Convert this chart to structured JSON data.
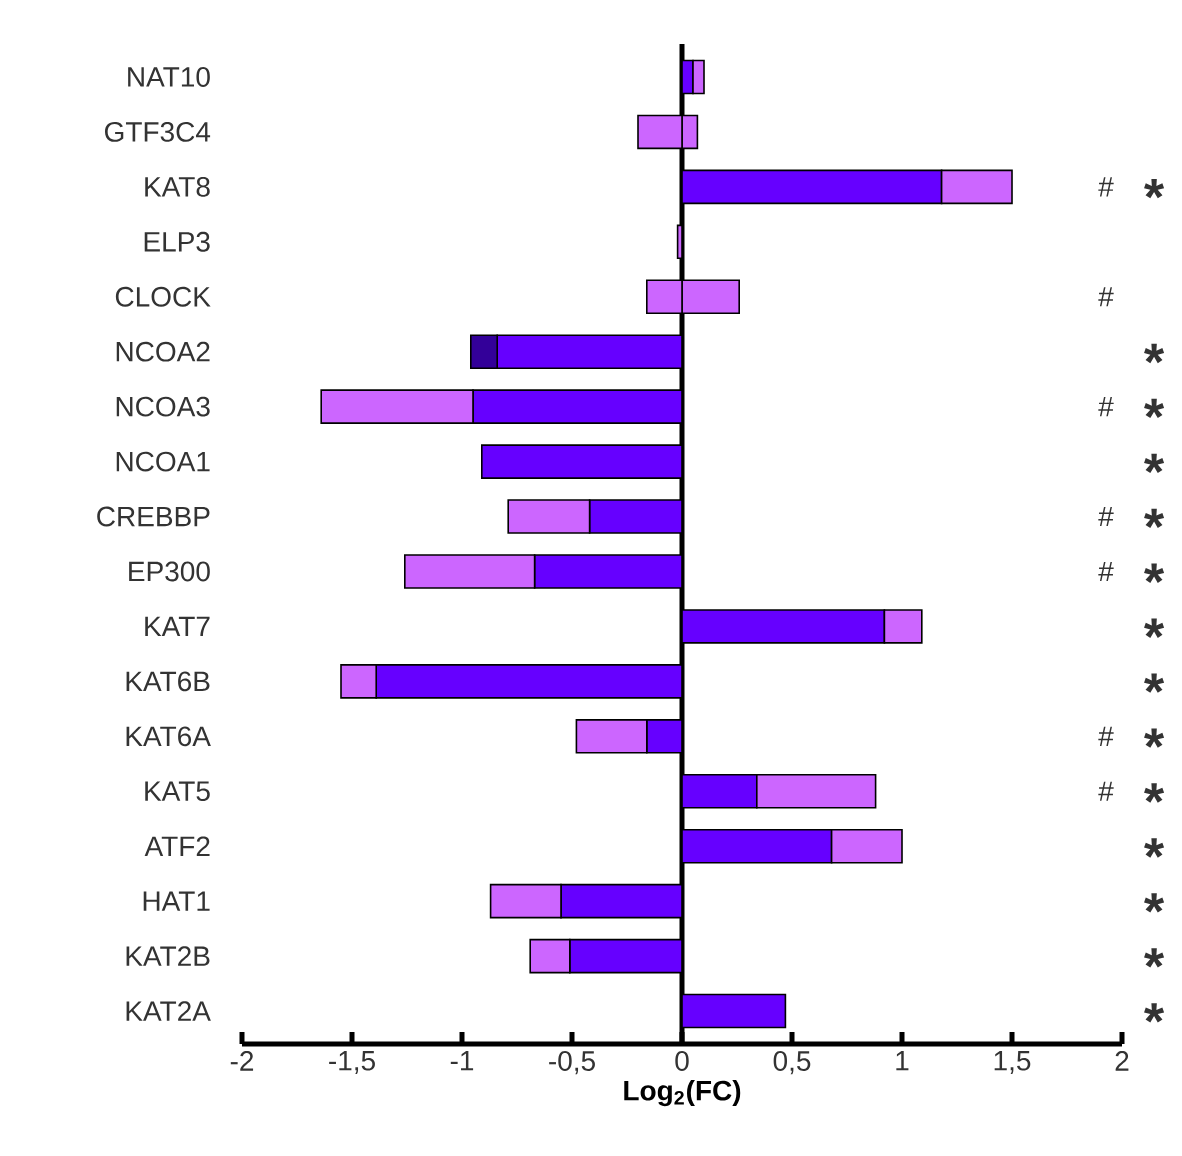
{
  "chart_data": {
    "type": "bar",
    "orientation": "horizontal",
    "stacked": true,
    "xlabel": "Log$_{2}$(FC)",
    "categories": [
      "NAT10",
      "GTF3C4",
      "KAT8",
      "ELP3",
      "CLOCK",
      "NCOA2",
      "NCOA3",
      "NCOA1",
      "CREBBP",
      "EP300",
      "KAT7",
      "KAT6B",
      "KAT6A",
      "KAT5",
      "ATF2",
      "HAT1",
      "KAT2B",
      "KAT2A"
    ],
    "series": [
      {
        "color": "#6600ff",
        "values": [
          0.05,
          null,
          1.18,
          null,
          null,
          -0.84,
          -0.95,
          -0.91,
          -0.42,
          -0.67,
          0.92,
          -1.39,
          -0.16,
          0.34,
          0.68,
          -0.55,
          -0.51,
          0.47
        ]
      },
      {
        "color": "#330099",
        "values": [
          null,
          null,
          null,
          null,
          null,
          -0.12,
          null,
          null,
          null,
          null,
          null,
          null,
          null,
          null,
          null,
          null,
          null,
          null
        ]
      },
      {
        "color": "#cc66ff",
        "values": [
          0.05,
          0.07,
          0.32,
          null,
          0.26,
          null,
          -0.69,
          null,
          -0.37,
          -0.59,
          0.17,
          -0.16,
          -0.32,
          0.54,
          0.32,
          -0.32,
          -0.18,
          null
        ]
      },
      {
        "color": "#cc66ff",
        "values": [
          null,
          -0.2,
          null,
          -0.02,
          -0.16,
          null,
          null,
          null,
          null,
          null,
          null,
          null,
          null,
          null,
          null,
          null,
          null,
          null
        ]
      }
    ],
    "xlim": [
      -2,
      2
    ],
    "xticks": [
      -2,
      {
        "value": -1.5,
        "label": "-1,5"
      },
      -1,
      {
        "value": -0.5,
        "label": "-0,5"
      },
      0,
      {
        "value": 0.5,
        "label": "0,5"
      },
      1,
      {
        "value": 1.5,
        "label": "1,5"
      },
      2
    ],
    "annotations": [
      "#",
      "*",
      "#",
      "*",
      "#",
      "*",
      "*",
      "#",
      "*",
      "#",
      "*",
      "*",
      "*",
      "#",
      "*",
      "#",
      "*",
      "*",
      "*",
      "*",
      "*"
    ]
  }
}
